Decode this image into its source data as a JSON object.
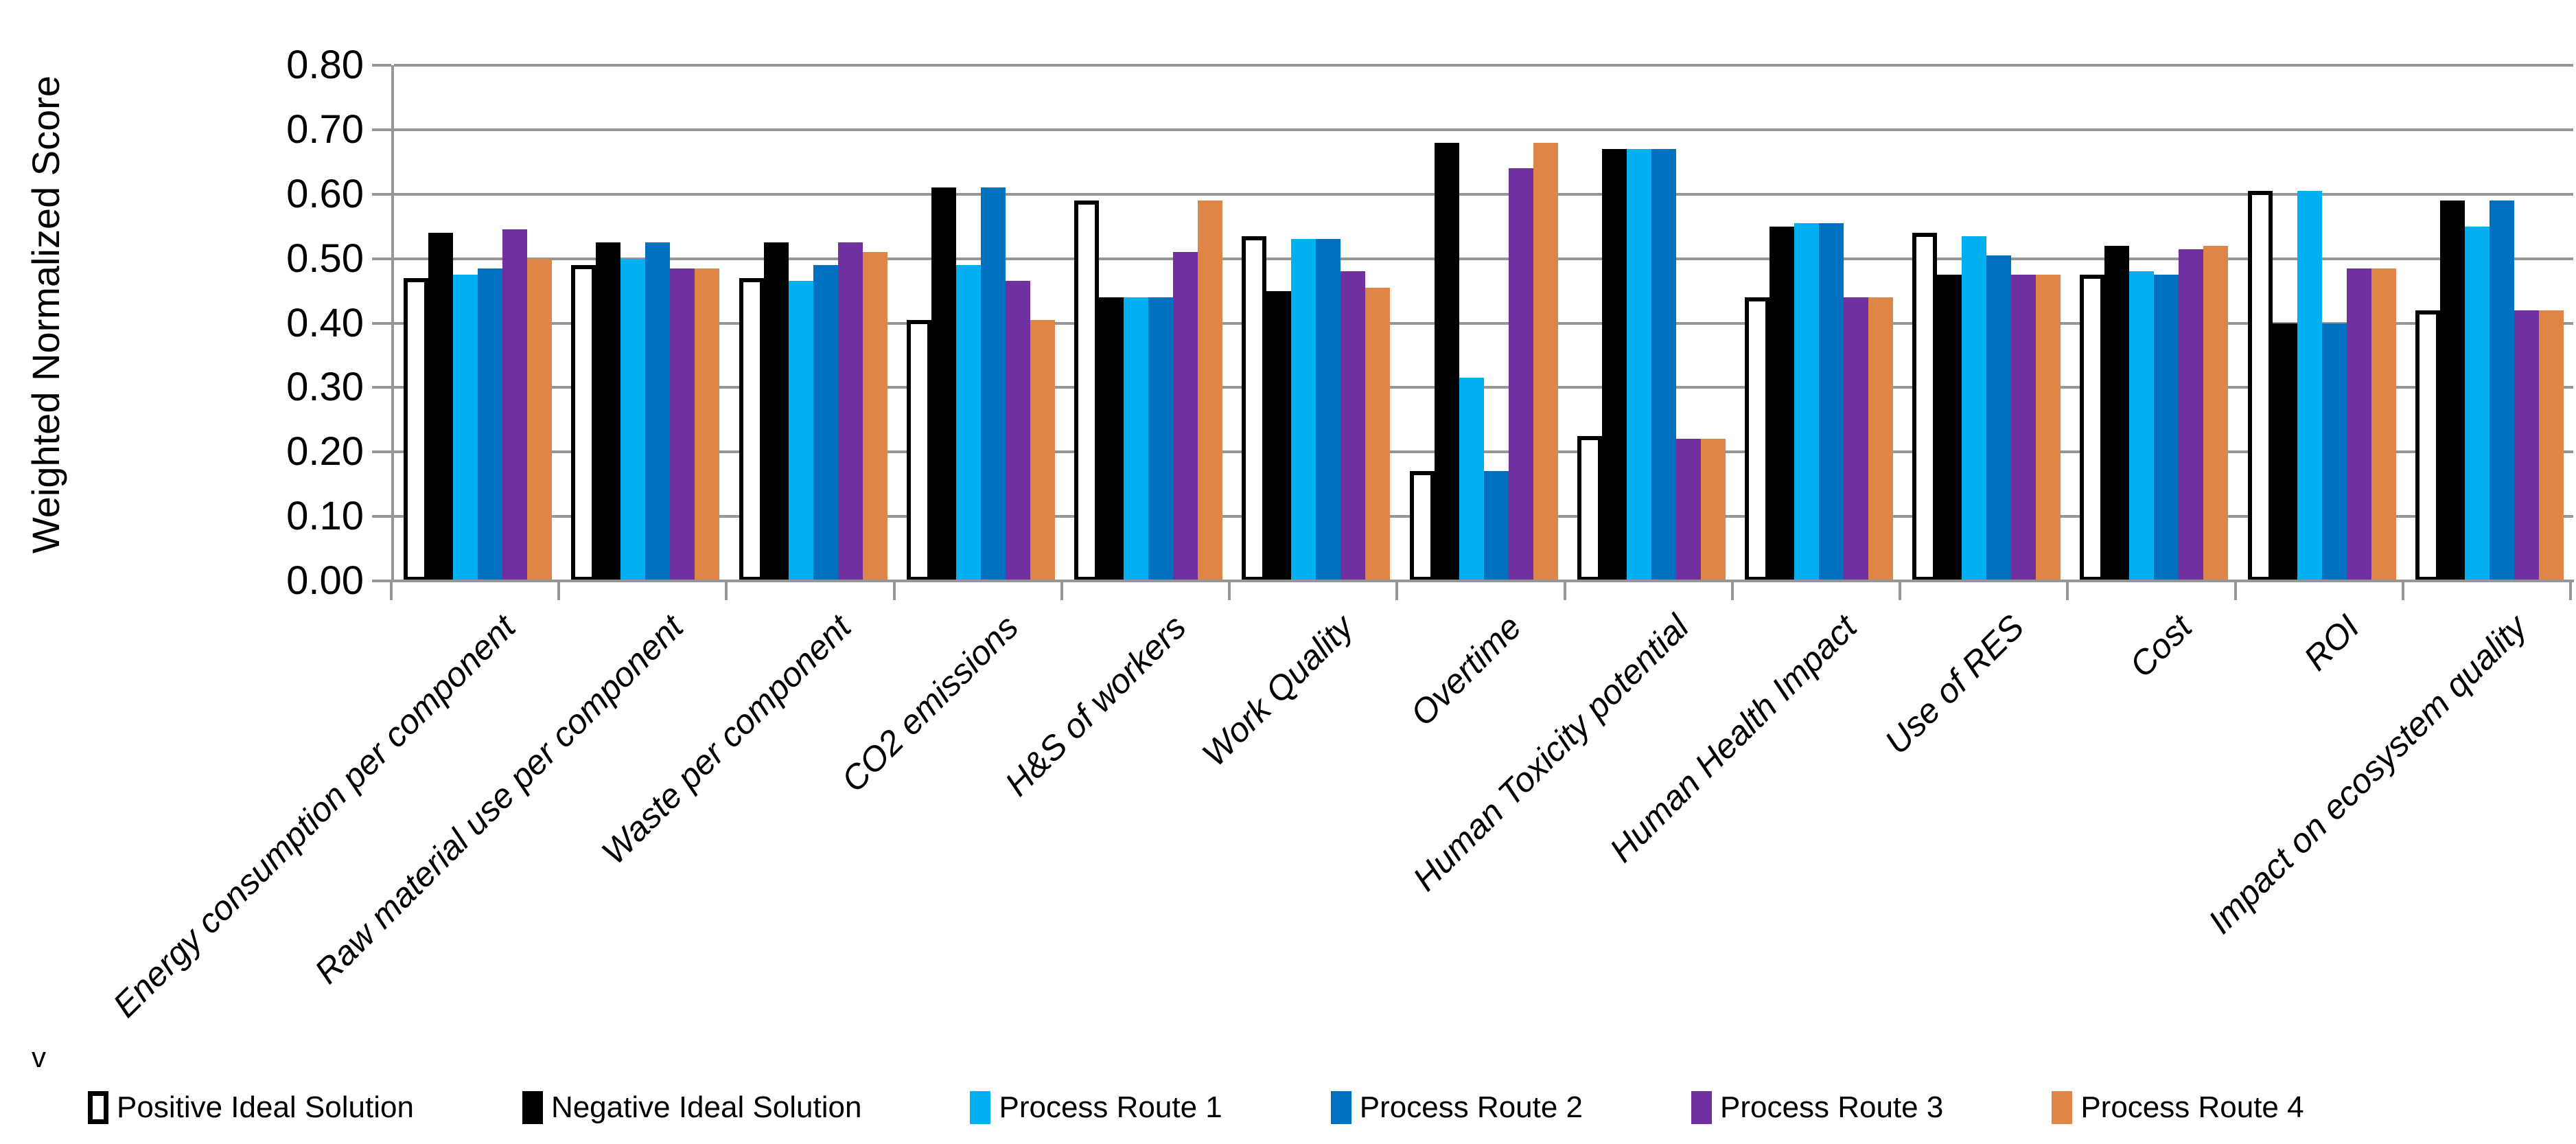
{
  "chart_data": {
    "type": "bar",
    "title": "",
    "xlabel": "",
    "ylabel": "Weighted Normalized Score",
    "ylim": [
      0,
      0.8
    ],
    "y_tick_step": 0.1,
    "y_tick_labels": [
      "0.00",
      "0.10",
      "0.20",
      "0.30",
      "0.40",
      "0.50",
      "0.60",
      "0.70",
      "0.80"
    ],
    "grid": true,
    "legend_position": "bottom",
    "categories": [
      "Energy consumption per component",
      "Raw material use per component",
      "Waste per component",
      "CO2 emissions",
      "H&S of workers",
      "Work Quality",
      "Overtime",
      "Human Toxicity potential",
      "Human Health Impact",
      "Use of RES",
      "Cost",
      "ROI",
      "Impact on ecosystem quality"
    ],
    "series": [
      {
        "name": "Positive Ideal Solution",
        "fill": "#FFFFFF",
        "border": "#000000",
        "values": [
          0.47,
          0.49,
          0.47,
          0.405,
          0.59,
          0.535,
          0.17,
          0.225,
          0.44,
          0.54,
          0.475,
          0.605,
          0.42
        ]
      },
      {
        "name": "Negative Ideal Solution",
        "fill": "#000000",
        "values": [
          0.54,
          0.525,
          0.525,
          0.61,
          0.44,
          0.45,
          0.68,
          0.67,
          0.55,
          0.475,
          0.52,
          0.4,
          0.59
        ]
      },
      {
        "name": "Process Route 1",
        "fill": "#00B0F0",
        "values": [
          0.475,
          0.5,
          0.465,
          0.49,
          0.44,
          0.53,
          0.315,
          0.67,
          0.555,
          0.535,
          0.48,
          0.605,
          0.55
        ]
      },
      {
        "name": "Process Route 2",
        "fill": "#0070C0",
        "values": [
          0.485,
          0.525,
          0.49,
          0.61,
          0.44,
          0.53,
          0.17,
          0.67,
          0.555,
          0.505,
          0.475,
          0.4,
          0.59
        ]
      },
      {
        "name": "Process Route 3",
        "fill": "#7030A0",
        "values": [
          0.545,
          0.485,
          0.525,
          0.465,
          0.51,
          0.48,
          0.64,
          0.22,
          0.44,
          0.475,
          0.515,
          0.485,
          0.42
        ]
      },
      {
        "name": "Process Route 4",
        "fill": "#DF8646",
        "values": [
          0.5,
          0.485,
          0.51,
          0.405,
          0.59,
          0.455,
          0.68,
          0.22,
          0.44,
          0.475,
          0.52,
          0.485,
          0.42
        ]
      }
    ],
    "colors": {
      "gridline": "#969696",
      "axis": "#969696",
      "text": "#000000",
      "background": "#FFFFFF"
    },
    "stray_mark": "v"
  }
}
